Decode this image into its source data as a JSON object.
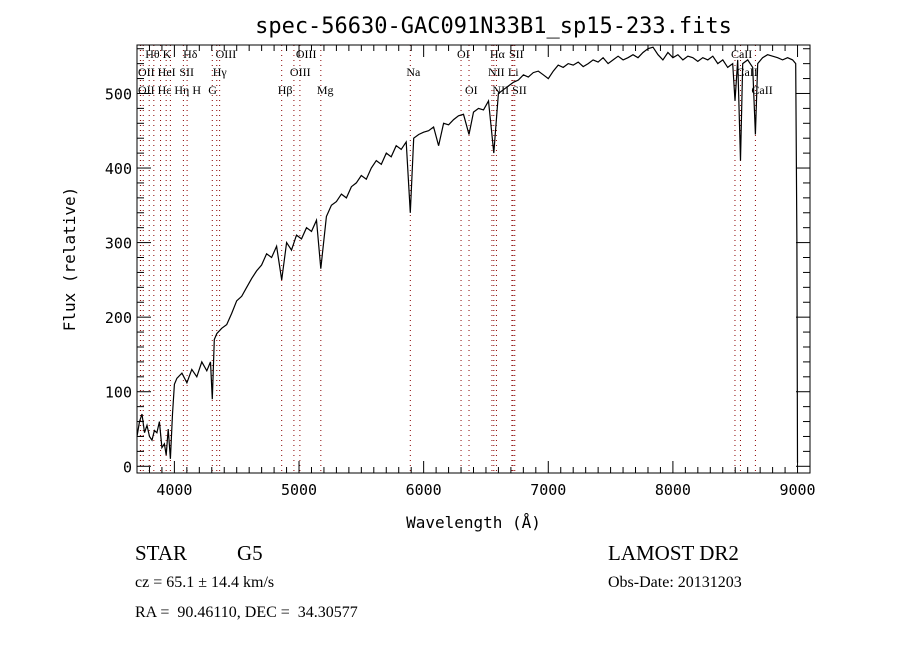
{
  "chart_data": {
    "type": "line",
    "title": "spec-56630-GAC091N33B1_sp15-233.fits",
    "xlabel": "Wavelength (Å)",
    "ylabel": "Flux (relative)",
    "xlim": [
      3700,
      9100
    ],
    "ylim": [
      -9,
      565
    ],
    "xticks": [
      4000,
      5000,
      6000,
      7000,
      8000,
      9000
    ],
    "yticks": [
      0,
      100,
      200,
      300,
      400,
      500
    ],
    "grid": false,
    "series": [
      {
        "name": "spectrum",
        "x": [
          3700,
          3720,
          3740,
          3760,
          3780,
          3800,
          3820,
          3840,
          3860,
          3880,
          3900,
          3920,
          3934,
          3950,
          3968,
          3985,
          4000,
          4020,
          4060,
          4100,
          4140,
          4180,
          4220,
          4260,
          4290,
          4304,
          4320,
          4340,
          4380,
          4420,
          4460,
          4500,
          4540,
          4580,
          4620,
          4660,
          4700,
          4740,
          4780,
          4820,
          4861,
          4900,
          4940,
          4980,
          5020,
          5060,
          5100,
          5140,
          5175,
          5220,
          5260,
          5300,
          5340,
          5380,
          5420,
          5460,
          5500,
          5540,
          5580,
          5620,
          5660,
          5700,
          5740,
          5780,
          5820,
          5860,
          5893,
          5920,
          5960,
          6000,
          6040,
          6080,
          6120,
          6160,
          6200,
          6240,
          6280,
          6320,
          6364,
          6400,
          6440,
          6480,
          6520,
          6563,
          6600,
          6640,
          6680,
          6720,
          6760,
          6800,
          6840,
          6880,
          6920,
          6960,
          7000,
          7040,
          7080,
          7120,
          7160,
          7200,
          7240,
          7280,
          7320,
          7360,
          7400,
          7440,
          7480,
          7520,
          7560,
          7600,
          7640,
          7680,
          7720,
          7760,
          7800,
          7840,
          7880,
          7920,
          7960,
          8000,
          8040,
          8080,
          8120,
          8160,
          8200,
          8240,
          8280,
          8320,
          8360,
          8400,
          8440,
          8480,
          8498,
          8520,
          8542,
          8560,
          8600,
          8640,
          8662,
          8680,
          8720,
          8760,
          8800,
          8840,
          8880,
          8920,
          8960,
          8985,
          8995,
          9000
        ],
        "y": [
          40,
          60,
          70,
          45,
          55,
          40,
          35,
          48,
          45,
          60,
          25,
          30,
          15,
          50,
          10,
          70,
          110,
          118,
          125,
          112,
          130,
          120,
          140,
          128,
          140,
          90,
          170,
          178,
          185,
          190,
          205,
          222,
          228,
          240,
          252,
          262,
          270,
          285,
          280,
          295,
          250,
          300,
          290,
          310,
          305,
          320,
          315,
          330,
          265,
          335,
          350,
          355,
          365,
          360,
          375,
          380,
          390,
          385,
          400,
          410,
          405,
          420,
          415,
          430,
          425,
          435,
          340,
          440,
          445,
          448,
          450,
          455,
          430,
          460,
          458,
          465,
          470,
          472,
          445,
          475,
          480,
          478,
          490,
          420,
          500,
          505,
          510,
          515,
          518,
          525,
          522,
          528,
          530,
          525,
          520,
          530,
          538,
          535,
          540,
          538,
          542,
          536,
          540,
          545,
          542,
          548,
          540,
          545,
          550,
          545,
          548,
          552,
          548,
          555,
          560,
          562,
          552,
          545,
          555,
          548,
          552,
          545,
          550,
          548,
          543,
          548,
          545,
          550,
          540,
          545,
          535,
          540,
          490,
          545,
          410,
          540,
          545,
          535,
          445,
          540,
          548,
          552,
          550,
          548,
          545,
          548,
          545,
          540,
          300,
          5
        ]
      }
    ],
    "line_markers": [
      {
        "label": "Hθ",
        "wavelength": 3798,
        "row": 1
      },
      {
        "label": "K",
        "wavelength": 3934,
        "row": 1
      },
      {
        "label": "Hδ",
        "wavelength": 4102,
        "row": 1
      },
      {
        "label": "OIII",
        "wavelength": 4363,
        "row": 1
      },
      {
        "label": "OIII",
        "wavelength": 5007,
        "row": 1
      },
      {
        "label": "OI",
        "wavelength": 6300,
        "row": 1
      },
      {
        "label": "Hα",
        "wavelength": 6563,
        "row": 1
      },
      {
        "label": "SII",
        "wavelength": 6717,
        "row": 1
      },
      {
        "label": "CaII",
        "wavelength": 8498,
        "row": 1
      },
      {
        "label": "OII",
        "wavelength": 3727,
        "row": 2
      },
      {
        "label": "HeI",
        "wavelength": 3889,
        "row": 2
      },
      {
        "label": "SII",
        "wavelength": 4072,
        "row": 2
      },
      {
        "label": "Hγ",
        "wavelength": 4340,
        "row": 2
      },
      {
        "label": "OIII",
        "wavelength": 4959,
        "row": 2
      },
      {
        "label": "Na",
        "wavelength": 5893,
        "row": 2
      },
      {
        "label": "NII",
        "wavelength": 6548,
        "row": 2
      },
      {
        "label": "Li",
        "wavelength": 6708,
        "row": 2
      },
      {
        "label": "CaII",
        "wavelength": 8542,
        "row": 2
      },
      {
        "label": "OII",
        "wavelength": 3729,
        "row": 3
      },
      {
        "label": "Hε",
        "wavelength": 3750,
        "row": 3
      },
      {
        "label": "Hη",
        "wavelength": 3835,
        "row": 3
      },
      {
        "label": "H",
        "wavelength": 3968,
        "row": 3
      },
      {
        "label": "G",
        "wavelength": 4304,
        "row": 3
      },
      {
        "label": "Hβ",
        "wavelength": 4861,
        "row": 3
      },
      {
        "label": "Mg",
        "wavelength": 5175,
        "row": 3
      },
      {
        "label": "OI",
        "wavelength": 6364,
        "row": 3
      },
      {
        "label": "NII",
        "wavelength": 6584,
        "row": 3
      },
      {
        "label": "SII",
        "wavelength": 6731,
        "row": 3
      },
      {
        "label": "CaII",
        "wavelength": 8662,
        "row": 3
      }
    ],
    "marker_color": "#8b0000",
    "line_color": "#000000"
  },
  "info": {
    "class": "STAR",
    "subclass": "G5",
    "survey": "LAMOST DR2",
    "cz": "cz = 65.1 ± 14.4 km/s",
    "obs_date": "Obs-Date: 20131203",
    "coords": "RA =  90.46110, DEC =  34.30577"
  }
}
